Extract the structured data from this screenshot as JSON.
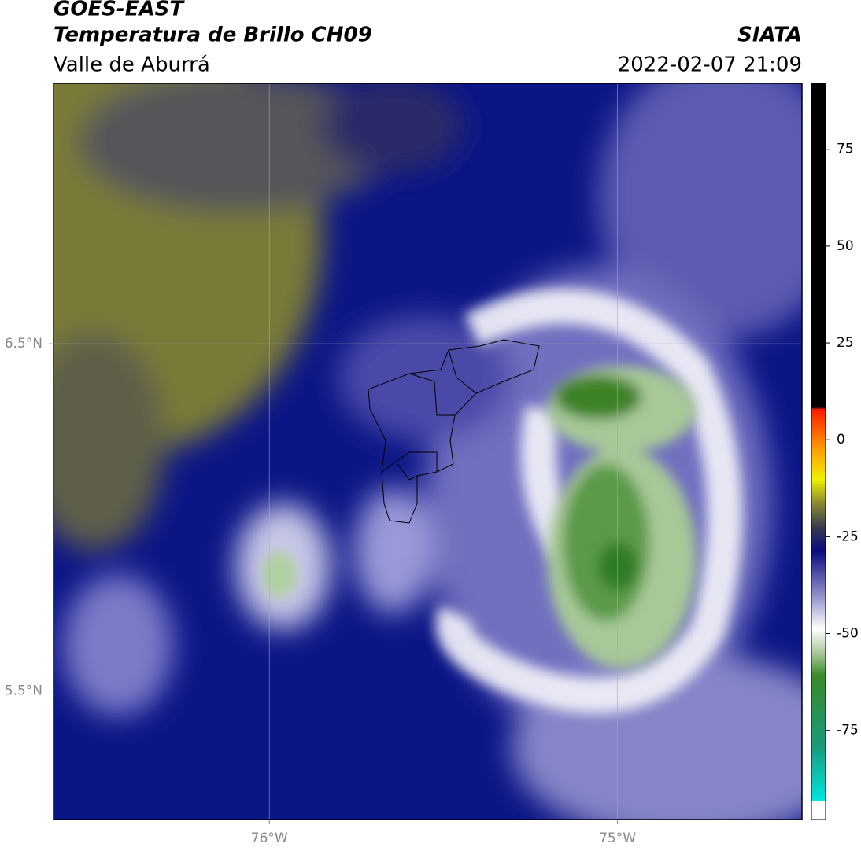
{
  "header": {
    "title": "GOES-EAST",
    "subtitle": "Temperatura de Brillo CH09",
    "region": "Valle de Aburrá",
    "source": "SIATA",
    "datetime": "2022-02-07 21:09"
  },
  "map": {
    "xlim": [
      -76.62,
      -74.47
    ],
    "ylim": [
      5.13,
      7.25
    ],
    "xticks": [
      {
        "value": -76,
        "label": "76°W"
      },
      {
        "value": -75,
        "label": "75°W"
      }
    ],
    "yticks": [
      {
        "value": 6.5,
        "label": "6.5°N"
      },
      {
        "value": 5.5,
        "label": "5.5°N"
      }
    ],
    "grid": true
  },
  "colorbar": {
    "lim": [
      -98,
      92
    ],
    "ticks": [
      75,
      50,
      25,
      0,
      -25,
      -50,
      -75
    ]
  }
}
